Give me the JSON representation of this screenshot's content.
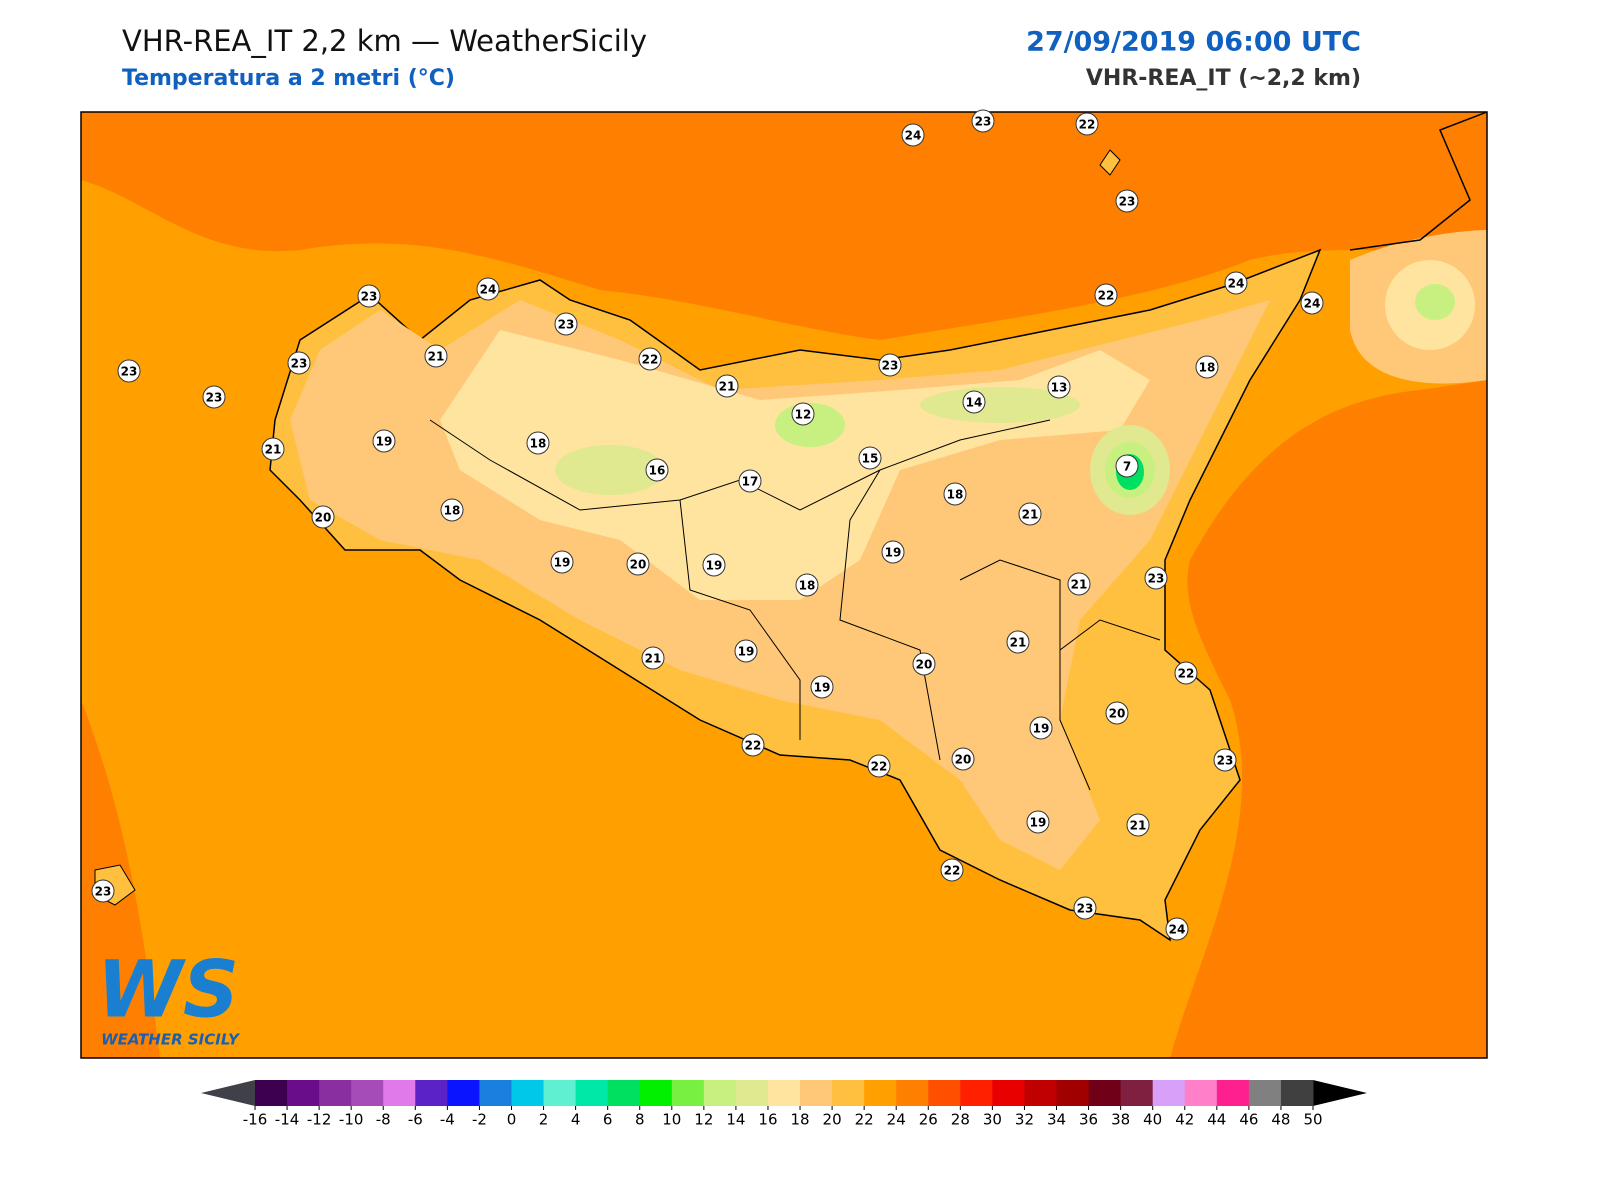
{
  "header": {
    "title": "VHR-REA_IT 2,2 km — WeatherSicily",
    "subtitle": "Temperatura a 2 metri (°C)",
    "datetime": "27/09/2019 06:00 UTC",
    "model": "VHR-REA_IT (~2,2 km)"
  },
  "stations": [
    24,
    23,
    22,
    23,
    23,
    24,
    23,
    22,
    24,
    24,
    23,
    23,
    23,
    21,
    22,
    21,
    23,
    13,
    18,
    12,
    14,
    21,
    19,
    18,
    16,
    17,
    15,
    7,
    18,
    20,
    18,
    21,
    19,
    20,
    19,
    19,
    18,
    21,
    23,
    21,
    19,
    21,
    20,
    19,
    22,
    20,
    19,
    22,
    22,
    20,
    23,
    19,
    21,
    22,
    23,
    24,
    23
  ],
  "colorbar": {
    "ticks": [
      -16,
      -14,
      -12,
      -10,
      -8,
      -6,
      -4,
      -2,
      0,
      2,
      4,
      6,
      8,
      10,
      12,
      14,
      16,
      18,
      20,
      22,
      24,
      26,
      28,
      30,
      32,
      34,
      36,
      38,
      40,
      42,
      44,
      46,
      48,
      50
    ],
    "colors": [
      "#3d0050",
      "#6a0d8a",
      "#8a2fa0",
      "#a64cb8",
      "#e07aea",
      "#5b22c8",
      "#0a14ff",
      "#1a80e0",
      "#00c8e8",
      "#5ef0d0",
      "#00e8a8",
      "#00e060",
      "#00f000",
      "#78f040",
      "#c8f080",
      "#e0e890",
      "#ffe4a0",
      "#ffc878",
      "#ffc040",
      "#ffa000",
      "#ff8000",
      "#ff5000",
      "#ff2000",
      "#e80000",
      "#c00000",
      "#a00000",
      "#700018",
      "#802040",
      "#d8a0f8",
      "#ff80c8",
      "#ff2090",
      "#808080",
      "#404040"
    ],
    "under_color": "#404048",
    "over_color": "#000000"
  },
  "logo": {
    "mark": "WS",
    "name": "WEATHER SICILY"
  }
}
